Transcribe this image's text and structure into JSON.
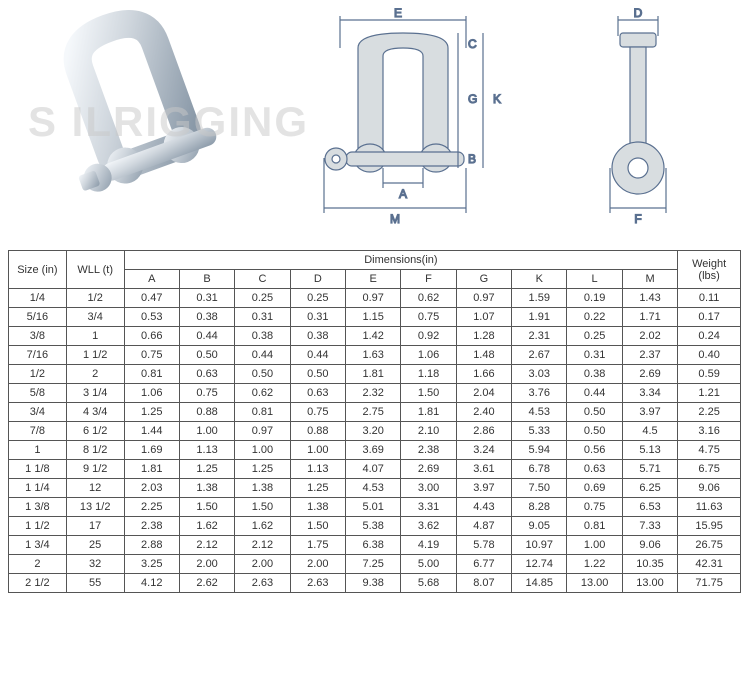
{
  "watermark": "S ILRIGGING",
  "diagram_labels": {
    "A": "A",
    "B": "B",
    "C": "C",
    "D": "D",
    "E": "E",
    "F": "F",
    "G": "G",
    "K": "K",
    "M": "M"
  },
  "table": {
    "header": {
      "size": "Size (in)",
      "wll": "WLL (t)",
      "dimensions": "Dimensions(in)",
      "weight": "Weight (lbs)",
      "dim_cols": [
        "A",
        "B",
        "C",
        "D",
        "E",
        "F",
        "G",
        "K",
        "L",
        "M"
      ]
    },
    "rows": [
      {
        "size": "1/4",
        "wll": "1/2",
        "A": "0.47",
        "B": "0.31",
        "C": "0.25",
        "D": "0.25",
        "E": "0.97",
        "F": "0.62",
        "G": "0.97",
        "K": "1.59",
        "L": "0.19",
        "M": "1.43",
        "wt": "0.11"
      },
      {
        "size": "5/16",
        "wll": "3/4",
        "A": "0.53",
        "B": "0.38",
        "C": "0.31",
        "D": "0.31",
        "E": "1.15",
        "F": "0.75",
        "G": "1.07",
        "K": "1.91",
        "L": "0.22",
        "M": "1.71",
        "wt": "0.17"
      },
      {
        "size": "3/8",
        "wll": "1",
        "A": "0.66",
        "B": "0.44",
        "C": "0.38",
        "D": "0.38",
        "E": "1.42",
        "F": "0.92",
        "G": "1.28",
        "K": "2.31",
        "L": "0.25",
        "M": "2.02",
        "wt": "0.24"
      },
      {
        "size": "7/16",
        "wll": "1 1/2",
        "A": "0.75",
        "B": "0.50",
        "C": "0.44",
        "D": "0.44",
        "E": "1.63",
        "F": "1.06",
        "G": "1.48",
        "K": "2.67",
        "L": "0.31",
        "M": "2.37",
        "wt": "0.40"
      },
      {
        "size": "1/2",
        "wll": "2",
        "A": "0.81",
        "B": "0.63",
        "C": "0.50",
        "D": "0.50",
        "E": "1.81",
        "F": "1.18",
        "G": "1.66",
        "K": "3.03",
        "L": "0.38",
        "M": "2.69",
        "wt": "0.59"
      },
      {
        "size": "5/8",
        "wll": "3 1/4",
        "A": "1.06",
        "B": "0.75",
        "C": "0.62",
        "D": "0.63",
        "E": "2.32",
        "F": "1.50",
        "G": "2.04",
        "K": "3.76",
        "L": "0.44",
        "M": "3.34",
        "wt": "1.21"
      },
      {
        "size": "3/4",
        "wll": "4 3/4",
        "A": "1.25",
        "B": "0.88",
        "C": "0.81",
        "D": "0.75",
        "E": "2.75",
        "F": "1.81",
        "G": "2.40",
        "K": "4.53",
        "L": "0.50",
        "M": "3.97",
        "wt": "2.25"
      },
      {
        "size": "7/8",
        "wll": "6 1/2",
        "A": "1.44",
        "B": "1.00",
        "C": "0.97",
        "D": "0.88",
        "E": "3.20",
        "F": "2.10",
        "G": "2.86",
        "K": "5.33",
        "L": "0.50",
        "M": "4.5",
        "wt": "3.16"
      },
      {
        "size": "1",
        "wll": "8 1/2",
        "A": "1.69",
        "B": "1.13",
        "C": "1.00",
        "D": "1.00",
        "E": "3.69",
        "F": "2.38",
        "G": "3.24",
        "K": "5.94",
        "L": "0.56",
        "M": "5.13",
        "wt": "4.75"
      },
      {
        "size": "1 1/8",
        "wll": "9 1/2",
        "A": "1.81",
        "B": "1.25",
        "C": "1.25",
        "D": "1.13",
        "E": "4.07",
        "F": "2.69",
        "G": "3.61",
        "K": "6.78",
        "L": "0.63",
        "M": "5.71",
        "wt": "6.75"
      },
      {
        "size": "1 1/4",
        "wll": "12",
        "A": "2.03",
        "B": "1.38",
        "C": "1.38",
        "D": "1.25",
        "E": "4.53",
        "F": "3.00",
        "G": "3.97",
        "K": "7.50",
        "L": "0.69",
        "M": "6.25",
        "wt": "9.06"
      },
      {
        "size": "1 3/8",
        "wll": "13 1/2",
        "A": "2.25",
        "B": "1.50",
        "C": "1.50",
        "D": "1.38",
        "E": "5.01",
        "F": "3.31",
        "G": "4.43",
        "K": "8.28",
        "L": "0.75",
        "M": "6.53",
        "wt": "11.63"
      },
      {
        "size": "1 1/2",
        "wll": "17",
        "A": "2.38",
        "B": "1.62",
        "C": "1.62",
        "D": "1.50",
        "E": "5.38",
        "F": "3.62",
        "G": "4.87",
        "K": "9.05",
        "L": "0.81",
        "M": "7.33",
        "wt": "15.95"
      },
      {
        "size": "1 3/4",
        "wll": "25",
        "A": "2.88",
        "B": "2.12",
        "C": "2.12",
        "D": "1.75",
        "E": "6.38",
        "F": "4.19",
        "G": "5.78",
        "K": "10.97",
        "L": "1.00",
        "M": "9.06",
        "wt": "26.75"
      },
      {
        "size": "2",
        "wll": "32",
        "A": "3.25",
        "B": "2.00",
        "C": "2.00",
        "D": "2.00",
        "E": "7.25",
        "F": "5.00",
        "G": "6.77",
        "K": "12.74",
        "L": "1.22",
        "M": "10.35",
        "wt": "42.31"
      },
      {
        "size": "2 1/2",
        "wll": "55",
        "A": "4.12",
        "B": "2.62",
        "C": "2.63",
        "D": "2.63",
        "E": "9.38",
        "F": "5.68",
        "G": "8.07",
        "K": "14.85",
        "L": "13.00",
        "M": "13.00",
        "wt": "71.75"
      }
    ]
  },
  "style": {
    "border_color": "#555",
    "text_color": "#333",
    "diagram_fill": "#d8dde0",
    "diagram_stroke": "#5a7090",
    "font_size_table": 11,
    "font_size_diagram": 12
  }
}
